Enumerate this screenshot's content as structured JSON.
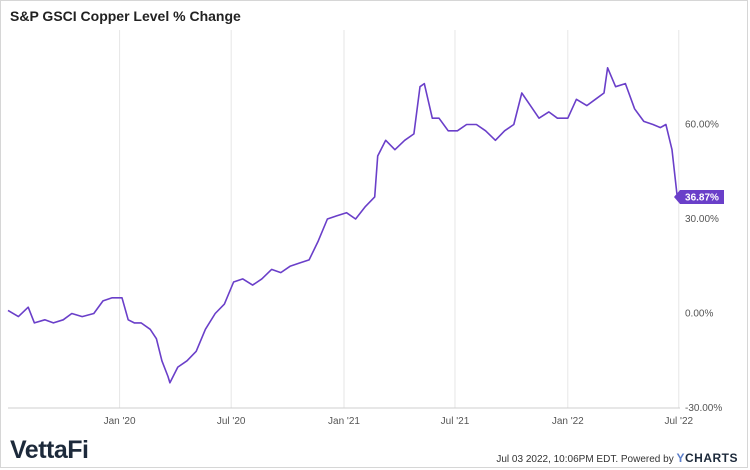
{
  "header": {
    "title": "S&P GSCI Copper Level % Change"
  },
  "footer": {
    "timestamp": "Jul 03 2022, 10:06PM EDT.",
    "powered_by": "Powered by",
    "ycharts_y": "Y",
    "ycharts_rest": "CHARTS",
    "brand_logo_text": "VettaFi"
  },
  "colors": {
    "line": "#6a3fc9",
    "badge": "#6a3fc9",
    "grid": "#e6e6e6",
    "axis": "#cfcfcf"
  },
  "chart_data": {
    "type": "line",
    "title": "S&P GSCI Copper Level % Change",
    "x_ticks": [
      {
        "date": "2020-01-01",
        "label": "Jan '20"
      },
      {
        "date": "2020-07-01",
        "label": "Jul '20"
      },
      {
        "date": "2021-01-01",
        "label": "Jan '21"
      },
      {
        "date": "2021-07-01",
        "label": "Jul '21"
      },
      {
        "date": "2022-01-01",
        "label": "Jan '22"
      },
      {
        "date": "2022-07-01",
        "label": "Jul '22"
      }
    ],
    "y_ticks": [
      {
        "value": 60,
        "label": "60.00%"
      },
      {
        "value": 30,
        "label": "30.00%"
      },
      {
        "value": 0,
        "label": "0.00%"
      },
      {
        "value": -30,
        "label": "-30.00%"
      }
    ],
    "xlim": [
      "2019-07-03",
      "2022-07-03"
    ],
    "ylim": [
      -30,
      90
    ],
    "grid": "vertical",
    "last_value_label": "36.87%",
    "series": [
      {
        "x": [
          "2019-07-03",
          "2019-07-20",
          "2019-08-05",
          "2019-08-15",
          "2019-09-01",
          "2019-09-15",
          "2019-10-01",
          "2019-10-15",
          "2019-11-01",
          "2019-11-20",
          "2019-12-05",
          "2019-12-20",
          "2020-01-05",
          "2020-01-15",
          "2020-01-25",
          "2020-02-05",
          "2020-02-20",
          "2020-03-01",
          "2020-03-10",
          "2020-03-20",
          "2020-03-23",
          "2020-04-05",
          "2020-04-20",
          "2020-05-05",
          "2020-05-20",
          "2020-06-05",
          "2020-06-20",
          "2020-07-05",
          "2020-07-20",
          "2020-08-05",
          "2020-08-20",
          "2020-09-05",
          "2020-09-20",
          "2020-10-05",
          "2020-10-20",
          "2020-11-05",
          "2020-11-20",
          "2020-12-05",
          "2020-12-20",
          "2021-01-05",
          "2021-01-20",
          "2021-02-05",
          "2021-02-20",
          "2021-02-25",
          "2021-03-10",
          "2021-03-25",
          "2021-04-10",
          "2021-04-25",
          "2021-05-05",
          "2021-05-12",
          "2021-05-25",
          "2021-06-05",
          "2021-06-20",
          "2021-07-05",
          "2021-07-20",
          "2021-08-05",
          "2021-08-20",
          "2021-09-05",
          "2021-09-20",
          "2021-10-05",
          "2021-10-18",
          "2021-11-01",
          "2021-11-15",
          "2021-12-01",
          "2021-12-15",
          "2022-01-01",
          "2022-01-15",
          "2022-02-01",
          "2022-02-15",
          "2022-03-01",
          "2022-03-07",
          "2022-03-20",
          "2022-04-05",
          "2022-04-20",
          "2022-05-05",
          "2022-05-20",
          "2022-06-01",
          "2022-06-10",
          "2022-06-20",
          "2022-06-28",
          "2022-07-01"
        ],
        "values": [
          1,
          -1,
          2,
          -3,
          -2,
          -3,
          -2,
          0,
          -1,
          0,
          4,
          5,
          5,
          -2,
          -3,
          -3,
          -5,
          -8,
          -15,
          -20,
          -22,
          -17,
          -15,
          -12,
          -5,
          0,
          3,
          10,
          11,
          9,
          11,
          14,
          13,
          15,
          16,
          17,
          23,
          30,
          31,
          32,
          30,
          34,
          37,
          50,
          55,
          52,
          55,
          57,
          72,
          73,
          62,
          62,
          58,
          58,
          60,
          60,
          58,
          55,
          58,
          60,
          70,
          66,
          62,
          64,
          62,
          62,
          68,
          66,
          68,
          70,
          78,
          72,
          73,
          65,
          61,
          60,
          59,
          60,
          52,
          38,
          37
        ]
      }
    ]
  }
}
